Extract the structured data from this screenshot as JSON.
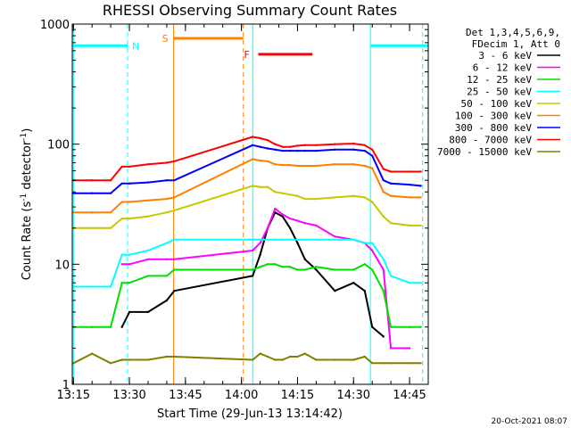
{
  "chart_data": {
    "type": "line",
    "title": "RHESSI Observing Summary Count Rates",
    "xlabel": "Start Time (29-Jun-13 13:14:42)",
    "ylabel": "Count Rate (s⁻¹ detector⁻¹)",
    "ylabel_parts": {
      "a": "Count Rate (s",
      "b": "-1",
      "c": " detector",
      "d": "-1",
      "e": ")"
    },
    "y_scale": "log",
    "ylim": [
      1,
      1000
    ],
    "xlim": [
      "13:14:42",
      "14:50:00"
    ],
    "x_ticks": [
      "13:15",
      "13:30",
      "13:45",
      "14:00",
      "14:15",
      "14:30",
      "14:45"
    ],
    "y_ticks": [
      "1",
      "10",
      "100",
      "1000"
    ],
    "legend": {
      "header1": "Det 1,3,4,5,6,9,",
      "header2": "FDecim 1, Att 0",
      "placement": "right, outside plot"
    },
    "stamp": "20-Oct-2021 08:07",
    "x": [
      "13:15",
      "13:20",
      "13:25",
      "13:28",
      "13:30",
      "13:35",
      "13:40",
      "13:42",
      "14:03",
      "14:05",
      "14:07",
      "14:09",
      "14:11",
      "14:13",
      "14:15",
      "14:17",
      "14:20",
      "14:25",
      "14:30",
      "14:33",
      "14:35",
      "14:38",
      "14:40",
      "14:45",
      "14:48"
    ],
    "series": [
      {
        "name": "3 - 6 keV",
        "color": "#000000",
        "values": [
          null,
          null,
          null,
          3,
          4,
          4,
          5,
          6,
          8,
          12,
          20,
          27,
          25,
          20,
          15,
          11,
          9,
          6,
          7,
          6,
          3,
          2.5,
          null,
          null,
          null
        ]
      },
      {
        "name": "6 - 12 keV",
        "color": "#ff00ff",
        "values": [
          null,
          null,
          null,
          10,
          10,
          11,
          11,
          11,
          13,
          15,
          20,
          29,
          26,
          24,
          23,
          22,
          21,
          17,
          16,
          15,
          13,
          9,
          2,
          2,
          null
        ]
      },
      {
        "name": "12 - 25 keV",
        "color": "#00e000",
        "values": [
          3,
          3,
          3,
          7,
          7,
          8,
          8,
          9,
          9,
          9.5,
          10,
          10,
          9.5,
          9.5,
          9,
          9,
          9.5,
          9,
          9,
          10,
          9,
          6,
          3,
          3,
          3
        ]
      },
      {
        "name": "25 - 50 keV",
        "color": "#00ffff",
        "values": [
          6.5,
          6.5,
          6.5,
          12,
          12,
          13,
          15,
          16,
          16,
          16,
          16,
          16,
          16,
          16,
          16,
          16,
          16,
          16,
          16,
          15,
          15,
          11,
          8,
          7,
          7
        ]
      },
      {
        "name": "50 - 100 keV",
        "color": "#c8c800",
        "values": [
          20,
          20,
          20,
          24,
          24,
          25,
          27,
          28,
          45,
          44,
          44,
          40,
          39,
          38,
          37,
          35,
          35,
          36,
          37,
          36,
          33,
          25,
          22,
          21,
          21
        ]
      },
      {
        "name": "100 - 300 keV",
        "color": "#ff8000",
        "values": [
          27,
          27,
          27,
          33,
          33,
          34,
          35,
          36,
          75,
          73,
          72,
          68,
          67,
          67,
          66,
          66,
          66,
          68,
          68,
          66,
          63,
          40,
          37,
          36,
          36
        ]
      },
      {
        "name": "300 - 800 keV",
        "color": "#0000ff",
        "values": [
          39,
          39,
          39,
          47,
          47,
          48,
          50,
          50,
          98,
          95,
          92,
          90,
          88,
          88,
          88,
          88,
          88,
          90,
          90,
          88,
          80,
          50,
          47,
          46,
          45
        ]
      },
      {
        "name": "800 - 7000 keV",
        "color": "#ff0000",
        "values": [
          50,
          50,
          50,
          65,
          65,
          68,
          70,
          72,
          115,
          112,
          108,
          100,
          95,
          95,
          97,
          98,
          98,
          100,
          101,
          98,
          90,
          62,
          59,
          59,
          59
        ]
      },
      {
        "name": "7000 - 15000 keV",
        "color": "#808000",
        "values": [
          1.5,
          1.8,
          1.5,
          1.6,
          1.6,
          1.6,
          1.7,
          1.7,
          1.6,
          1.8,
          1.7,
          1.6,
          1.6,
          1.7,
          1.7,
          1.8,
          1.6,
          1.6,
          1.6,
          1.7,
          1.5,
          1.5,
          1.5,
          1.5,
          1.5
        ]
      }
    ],
    "annotations": [
      {
        "label": "N",
        "color": "#00ffff",
        "start": "13:14:42",
        "end": "13:29:30",
        "level": 660
      },
      {
        "label": "",
        "color": "#00ffff",
        "start": "14:34:30",
        "end": "14:50:00",
        "level": 660
      },
      {
        "label": "S",
        "color": "#ff8000",
        "start": "13:41:50",
        "end": "14:00:30",
        "level": 760
      },
      {
        "label": "F",
        "color": "#ff0000",
        "start": "14:04:30",
        "end": "14:19:00",
        "level": 560
      }
    ],
    "vertical_markers": [
      {
        "time": "13:15:00",
        "color": "#00ffff",
        "style": "solid"
      },
      {
        "time": "13:29:30",
        "color": "#00ffff",
        "style": "dashed"
      },
      {
        "time": "13:41:50",
        "color": "#ff8000",
        "style": "solid"
      },
      {
        "time": "14:00:30",
        "color": "#ff8000",
        "style": "dashed"
      },
      {
        "time": "14:03:00",
        "color": "#00ffff",
        "style": "solid"
      },
      {
        "time": "14:34:30",
        "color": "#00ffff",
        "style": "solid"
      },
      {
        "time": "14:48:30",
        "color": "#00ffff",
        "style": "dashed"
      }
    ]
  }
}
